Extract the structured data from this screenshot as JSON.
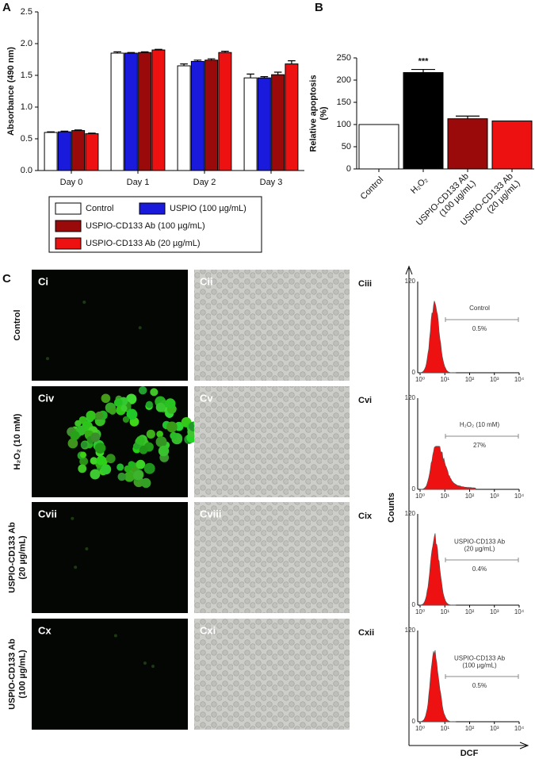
{
  "chart_data": [
    {
      "type": "bar",
      "panel_label": "A",
      "ylabel": "Absorbance (490 nm)",
      "categories": [
        "Day 0",
        "Day 1",
        "Day 2",
        "Day 3"
      ],
      "series": [
        {
          "name": "Control",
          "color": "#ffffff",
          "values": [
            0.6,
            1.85,
            1.65,
            1.46
          ],
          "errors": [
            0.01,
            0.02,
            0.03,
            0.06
          ]
        },
        {
          "name": "USPIO (100 µg/mL)",
          "color": "#1a1adc",
          "values": [
            0.61,
            1.85,
            1.72,
            1.46
          ],
          "errors": [
            0.01,
            0.01,
            0.02,
            0.02
          ]
        },
        {
          "name": "USPIO-CD133 Ab (100 µg/mL)",
          "color": "#9b0a0a",
          "values": [
            0.63,
            1.86,
            1.74,
            1.51
          ],
          "errors": [
            0.01,
            0.01,
            0.02,
            0.04
          ]
        },
        {
          "name": "USPIO-CD133 Ab (20 µg/mL)",
          "color": "#ee1111",
          "values": [
            0.58,
            1.9,
            1.86,
            1.68
          ],
          "errors": [
            0.01,
            0.01,
            0.02,
            0.05
          ]
        }
      ],
      "ylim": [
        0,
        2.5
      ],
      "yticks": [
        {
          "value": 0,
          "label": "0.0"
        },
        0.5,
        {
          "value": 1,
          "label": "1.0"
        },
        1.5,
        {
          "value": 2,
          "label": "2.0"
        },
        2.5
      ],
      "grid": false,
      "legend": "bottom"
    },
    {
      "type": "bar",
      "panel_label": "B",
      "ylabel": "Relative apoptosis\n(%)",
      "categories": [
        "Control",
        "H₂O₂",
        "USPIO-CD133 Ab\n(100 µg/mL)",
        "USPIO-CD133 Ab\n(20 µg/mL)"
      ],
      "values": [
        100,
        217,
        113,
        108
      ],
      "errors": [
        0,
        7,
        6,
        0
      ],
      "colors": [
        "#ffffff",
        "#000000",
        "#9b0a0a",
        "#ee1111"
      ],
      "annotations": [
        {
          "text": "***",
          "category": "H₂O₂"
        }
      ],
      "ylim": [
        0,
        250
      ],
      "yticks": [
        0,
        50,
        100,
        150,
        200,
        250
      ],
      "grid": false
    }
  ],
  "panel_c": {
    "panel_label": "C",
    "y_axis_label": "Counts",
    "x_axis_label": "DCF",
    "hist_yticks": [
      "0",
      "120"
    ],
    "hist_xticks": [
      "10⁰",
      "10¹",
      "10²",
      "10³",
      "10⁴"
    ],
    "rows": [
      {
        "row_label": "Control",
        "fluorescence_label": "Ci",
        "brightfield_label": "Cii",
        "histogram_label": "Ciii",
        "histogram_text": "Control",
        "histogram_percent": "0.5%"
      },
      {
        "row_label": "H₂O₂ (10 mM)",
        "fluorescence_label": "Civ",
        "brightfield_label": "Cv",
        "histogram_label": "Cvi",
        "histogram_text": "H₂O₂ (10 mM)",
        "histogram_percent": "27%"
      },
      {
        "row_label": "USPIO-CD133 Ab\n(20 µg/mL)",
        "fluorescence_label": "Cvii",
        "brightfield_label": "Cviii",
        "histogram_label": "Cix",
        "histogram_text": "USPIO-CD133 Ab\n(20 µg/mL)",
        "histogram_percent": "0.4%"
      },
      {
        "row_label": "USPIO-CD133 Ab\n(100 µg/mL)",
        "fluorescence_label": "Cx",
        "brightfield_label": "Cxi",
        "histogram_label": "Cxii",
        "histogram_text": "USPIO-CD133 Ab\n(100 µg/mL)",
        "histogram_percent": "0.5%"
      }
    ]
  }
}
